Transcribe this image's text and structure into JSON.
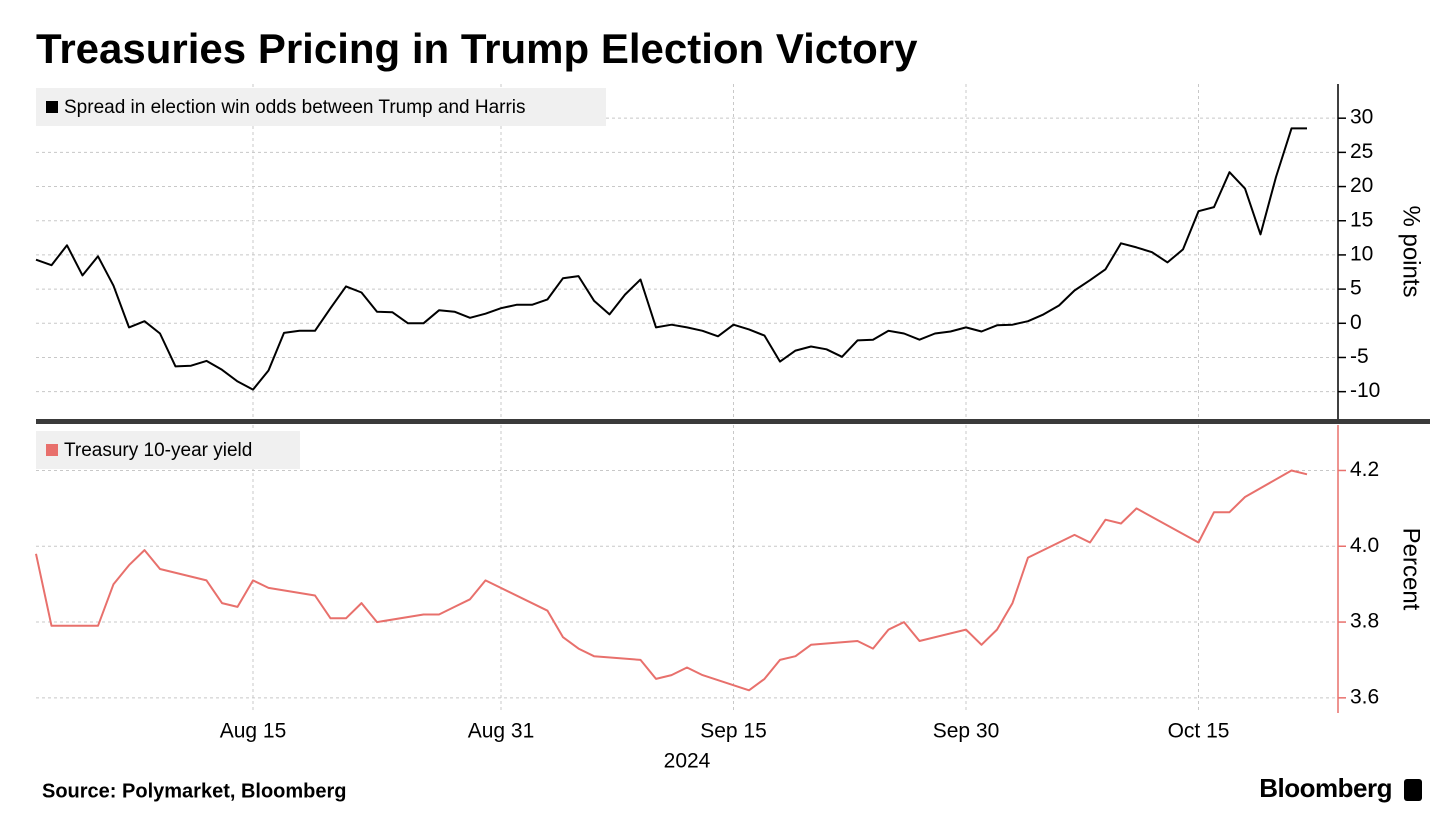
{
  "title": "Treasuries Pricing in Trump Election Victory",
  "source": "Source: Polymarket, Bloomberg",
  "brand": "Bloomberg",
  "chart_data": [
    {
      "type": "line",
      "ylabel": "% points",
      "ylim": [
        -14,
        35
      ],
      "yticks": [
        -10,
        -5,
        0,
        5,
        10,
        15,
        20,
        25,
        30
      ],
      "grid": true,
      "x": [
        "2024-08-01",
        "2024-08-02",
        "2024-08-03",
        "2024-08-04",
        "2024-08-05",
        "2024-08-06",
        "2024-08-07",
        "2024-08-08",
        "2024-08-09",
        "2024-08-10",
        "2024-08-11",
        "2024-08-12",
        "2024-08-13",
        "2024-08-14",
        "2024-08-15",
        "2024-08-16",
        "2024-08-17",
        "2024-08-18",
        "2024-08-19",
        "2024-08-20",
        "2024-08-21",
        "2024-08-22",
        "2024-08-23",
        "2024-08-24",
        "2024-08-25",
        "2024-08-26",
        "2024-08-27",
        "2024-08-28",
        "2024-08-29",
        "2024-08-30",
        "2024-08-31",
        "2024-09-01",
        "2024-09-02",
        "2024-09-03",
        "2024-09-04",
        "2024-09-05",
        "2024-09-06",
        "2024-09-07",
        "2024-09-08",
        "2024-09-09",
        "2024-09-10",
        "2024-09-11",
        "2024-09-12",
        "2024-09-13",
        "2024-09-14",
        "2024-09-15",
        "2024-09-16",
        "2024-09-17",
        "2024-09-18",
        "2024-09-19",
        "2024-09-20",
        "2024-09-21",
        "2024-09-22",
        "2024-09-23",
        "2024-09-24",
        "2024-09-25",
        "2024-09-26",
        "2024-09-27",
        "2024-09-28",
        "2024-09-29",
        "2024-09-30",
        "2024-10-01",
        "2024-10-02",
        "2024-10-03",
        "2024-10-04",
        "2024-10-05",
        "2024-10-06",
        "2024-10-07",
        "2024-10-08",
        "2024-10-09",
        "2024-10-10",
        "2024-10-11",
        "2024-10-12",
        "2024-10-13",
        "2024-10-14",
        "2024-10-15",
        "2024-10-16",
        "2024-10-17",
        "2024-10-18",
        "2024-10-19",
        "2024-10-20",
        "2024-10-21",
        "2024-10-22"
      ],
      "series": [
        {
          "name": "Spread in election win odds between Trump and Harris",
          "color": "#000000",
          "values": [
            9.3,
            8.5,
            11.4,
            7,
            9.8,
            5.5,
            -0.6,
            0.3,
            -1.5,
            -6.3,
            -6.2,
            -5.5,
            -6.8,
            -8.5,
            -9.7,
            -6.9,
            -1.4,
            -1.1,
            -1.1,
            2.2,
            5.4,
            4.5,
            1.7,
            1.6,
            0,
            0,
            1.9,
            1.7,
            0.8,
            1.4,
            2.2,
            2.7,
            2.7,
            3.5,
            6.6,
            6.9,
            3.3,
            1.3,
            4.2,
            6.4,
            -0.6,
            -0.2,
            -0.6,
            -1.1,
            -1.9,
            -0.2,
            -0.9,
            -1.8,
            -5.6,
            -4,
            -3.4,
            -3.8,
            -4.9,
            -2.5,
            -2.4,
            -1.1,
            -1.5,
            -2.4,
            -1.5,
            -1.2,
            -0.6,
            -1.2,
            -0.3,
            -0.2,
            0.3,
            1.3,
            2.6,
            4.8,
            6.3,
            7.9,
            11.7,
            11.1,
            10.4,
            8.9,
            10.8,
            16.4,
            17,
            22.1,
            19.7,
            13,
            21.4,
            28.5,
            28.5
          ]
        }
      ]
    },
    {
      "type": "line",
      "ylabel": "Percent",
      "ylim": [
        3.56,
        4.32
      ],
      "yticks": [
        3.6,
        3.8,
        {
          "value": 4,
          "label": "4.0"
        },
        4.2
      ],
      "grid": true,
      "xlabel": "2024",
      "xlim": [
        "2024-08-01",
        "2024-10-24"
      ],
      "xticks": [
        {
          "value": "2024-08-15",
          "label": "Aug 15"
        },
        {
          "value": "2024-08-31",
          "label": "Aug 31"
        },
        {
          "value": "2024-09-15",
          "label": "Sep 15"
        },
        {
          "value": "2024-09-30",
          "label": "Sep 30"
        },
        {
          "value": "2024-10-15",
          "label": "Oct 15"
        }
      ],
      "x": [
        "2024-08-01",
        "2024-08-02",
        "2024-08-05",
        "2024-08-06",
        "2024-08-07",
        "2024-08-08",
        "2024-08-09",
        "2024-08-12",
        "2024-08-13",
        "2024-08-14",
        "2024-08-15",
        "2024-08-16",
        "2024-08-19",
        "2024-08-20",
        "2024-08-21",
        "2024-08-22",
        "2024-08-23",
        "2024-08-26",
        "2024-08-27",
        "2024-08-28",
        "2024-08-29",
        "2024-08-30",
        "2024-09-03",
        "2024-09-04",
        "2024-09-05",
        "2024-09-06",
        "2024-09-09",
        "2024-09-10",
        "2024-09-11",
        "2024-09-12",
        "2024-09-13",
        "2024-09-16",
        "2024-09-17",
        "2024-09-18",
        "2024-09-19",
        "2024-09-20",
        "2024-09-23",
        "2024-09-24",
        "2024-09-25",
        "2024-09-26",
        "2024-09-27",
        "2024-09-30",
        "2024-10-01",
        "2024-10-02",
        "2024-10-03",
        "2024-10-04",
        "2024-10-07",
        "2024-10-08",
        "2024-10-09",
        "2024-10-10",
        "2024-10-11",
        "2024-10-15",
        "2024-10-16",
        "2024-10-17",
        "2024-10-18",
        "2024-10-21",
        "2024-10-22"
      ],
      "series": [
        {
          "name": "Treasury 10-year yield",
          "color": "#e8706c",
          "values": [
            3.98,
            3.79,
            3.79,
            3.9,
            3.95,
            3.99,
            3.94,
            3.91,
            3.85,
            3.84,
            3.91,
            3.89,
            3.87,
            3.81,
            3.81,
            3.85,
            3.8,
            3.82,
            3.82,
            3.84,
            3.86,
            3.91,
            3.83,
            3.76,
            3.73,
            3.71,
            3.7,
            3.65,
            3.66,
            3.68,
            3.66,
            3.62,
            3.65,
            3.7,
            3.71,
            3.74,
            3.75,
            3.73,
            3.78,
            3.8,
            3.75,
            3.78,
            3.74,
            3.78,
            3.85,
            3.97,
            4.03,
            4.01,
            4.07,
            4.06,
            4.1,
            4.01,
            4.09,
            4.09,
            4.13,
            4.2,
            4.19
          ]
        }
      ]
    }
  ]
}
